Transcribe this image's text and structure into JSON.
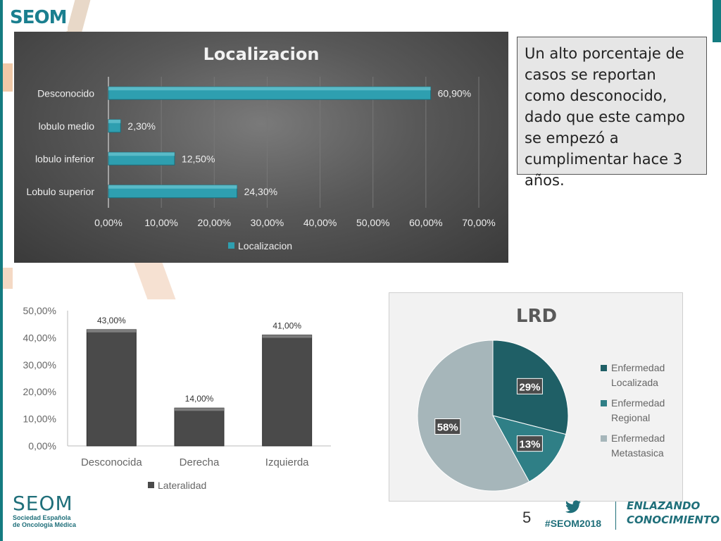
{
  "header": {
    "logo_text": "SEOM"
  },
  "note": {
    "text": "Un alto porcentaje de casos se reportan como desconocido, dado que este campo se empezó a cumplimentar hace 3 años."
  },
  "footer": {
    "logo_text": "SEOM",
    "logo_sub1": "Sociedad Española",
    "logo_sub2": "de Oncología Médica",
    "page_number": "5",
    "hashtag": "#SEOM2018",
    "slogan1": "ENLAZANDO",
    "slogan2": "CONOCIMIENTO"
  },
  "colors": {
    "bar_teal": "#2e9fb0",
    "bar_dark": "#4a4a4a",
    "pie_dark": "#1f5f66",
    "pie_mid": "#2f7f86",
    "pie_light": "#a6b6ba",
    "brand": "#1f6f7a"
  },
  "chart_data": [
    {
      "type": "bar",
      "orientation": "horizontal",
      "title": "Localizacion",
      "categories": [
        "Desconocido",
        "lobulo medio",
        "lobulo inferior",
        "Lobulo superior"
      ],
      "series": [
        {
          "name": "Localizacion",
          "values": [
            60.9,
            2.3,
            12.5,
            24.3
          ]
        }
      ],
      "data_labels": [
        "60,90%",
        "2,30%",
        "12,50%",
        "24,30%"
      ],
      "xlim": [
        0,
        70
      ],
      "ticks": [
        "0,00%",
        "10,00%",
        "20,00%",
        "30,00%",
        "40,00%",
        "50,00%",
        "60,00%",
        "70,00%"
      ],
      "legend": "bottom"
    },
    {
      "type": "bar",
      "orientation": "vertical",
      "title": "",
      "categories": [
        "Desconocida",
        "Derecha",
        "Izquierda"
      ],
      "series": [
        {
          "name": "Lateralidad",
          "values": [
            43,
            14,
            41
          ]
        }
      ],
      "data_labels": [
        "43,00%",
        "14,00%",
        "41,00%"
      ],
      "ylim": [
        0,
        50
      ],
      "ticks": [
        "0,00%",
        "10,00%",
        "20,00%",
        "30,00%",
        "40,00%",
        "50,00%"
      ],
      "legend": "bottom"
    },
    {
      "type": "pie",
      "title": "LRD",
      "labels": [
        "Enfermedad Localizada",
        "Enfermedad Regional",
        "Enfermedad Metastasica"
      ],
      "legend_lines": [
        [
          "Enfermedad",
          "Localizada"
        ],
        [
          "Enfermedad",
          "Regional"
        ],
        [
          "Enfermedad",
          "Metastasica"
        ]
      ],
      "values": [
        29,
        13,
        58
      ],
      "data_labels": [
        "29%",
        "13%",
        "58%"
      ],
      "legend": "right"
    }
  ]
}
